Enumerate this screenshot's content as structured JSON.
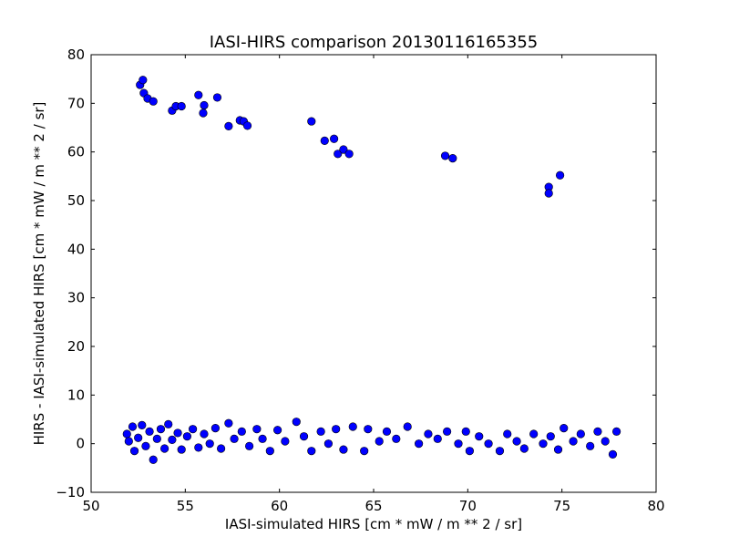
{
  "chart_data": {
    "type": "scatter",
    "title": "IASI-HIRS comparison 20130116165355",
    "xlabel": "IASI-simulated HIRS [cm * mW / m ** 2 / sr]",
    "ylabel": "HIRS - IASI-simulated HIRS [cm * mW / m ** 2 / sr]",
    "xlim": [
      50,
      80
    ],
    "ylim": [
      -10,
      80
    ],
    "xticks": [
      50,
      55,
      60,
      65,
      70,
      75,
      80
    ],
    "yticks": [
      -10,
      0,
      10,
      20,
      30,
      40,
      50,
      60,
      70,
      80
    ],
    "grid": false,
    "marker_color": "#0000ff",
    "outlier_points": [
      {
        "x": 52.6,
        "y": 73.8
      },
      {
        "x": 52.75,
        "y": 74.8
      },
      {
        "x": 52.8,
        "y": 72.1
      },
      {
        "x": 53.0,
        "y": 71.0
      },
      {
        "x": 53.3,
        "y": 70.4
      },
      {
        "x": 54.3,
        "y": 68.5
      },
      {
        "x": 54.5,
        "y": 69.4
      },
      {
        "x": 54.8,
        "y": 69.4
      },
      {
        "x": 55.7,
        "y": 71.7
      },
      {
        "x": 56.0,
        "y": 69.6
      },
      {
        "x": 55.95,
        "y": 68.0
      },
      {
        "x": 56.7,
        "y": 71.2
      },
      {
        "x": 57.3,
        "y": 65.3
      },
      {
        "x": 57.9,
        "y": 66.5
      },
      {
        "x": 58.1,
        "y": 66.3
      },
      {
        "x": 58.3,
        "y": 65.4
      },
      {
        "x": 61.7,
        "y": 66.3
      },
      {
        "x": 62.4,
        "y": 62.3
      },
      {
        "x": 62.9,
        "y": 62.7
      },
      {
        "x": 63.1,
        "y": 59.6
      },
      {
        "x": 63.4,
        "y": 60.5
      },
      {
        "x": 63.7,
        "y": 59.6
      },
      {
        "x": 68.8,
        "y": 59.2
      },
      {
        "x": 69.2,
        "y": 58.7
      },
      {
        "x": 74.3,
        "y": 52.8
      },
      {
        "x": 74.3,
        "y": 51.5
      },
      {
        "x": 74.9,
        "y": 55.2
      }
    ],
    "cluster_points": [
      {
        "x": 51.9,
        "y": 2.0
      },
      {
        "x": 52.0,
        "y": 0.5
      },
      {
        "x": 52.2,
        "y": 3.5
      },
      {
        "x": 52.3,
        "y": -1.5
      },
      {
        "x": 52.5,
        "y": 1.2
      },
      {
        "x": 52.7,
        "y": 3.8
      },
      {
        "x": 52.9,
        "y": -0.5
      },
      {
        "x": 53.1,
        "y": 2.5
      },
      {
        "x": 53.3,
        "y": -3.3
      },
      {
        "x": 53.5,
        "y": 1.0
      },
      {
        "x": 53.7,
        "y": 3.0
      },
      {
        "x": 53.9,
        "y": -1.0
      },
      {
        "x": 54.1,
        "y": 4.0
      },
      {
        "x": 54.3,
        "y": 0.8
      },
      {
        "x": 54.6,
        "y": 2.2
      },
      {
        "x": 54.8,
        "y": -1.2
      },
      {
        "x": 55.1,
        "y": 1.5
      },
      {
        "x": 55.4,
        "y": 3.0
      },
      {
        "x": 55.7,
        "y": -0.8
      },
      {
        "x": 56.0,
        "y": 2.0
      },
      {
        "x": 56.3,
        "y": 0.0
      },
      {
        "x": 56.6,
        "y": 3.2
      },
      {
        "x": 56.9,
        "y": -1.0
      },
      {
        "x": 57.3,
        "y": 4.2
      },
      {
        "x": 57.6,
        "y": 1.0
      },
      {
        "x": 58.0,
        "y": 2.5
      },
      {
        "x": 58.4,
        "y": -0.5
      },
      {
        "x": 58.8,
        "y": 3.0
      },
      {
        "x": 59.1,
        "y": 1.0
      },
      {
        "x": 59.5,
        "y": -1.5
      },
      {
        "x": 59.9,
        "y": 2.8
      },
      {
        "x": 60.3,
        "y": 0.5
      },
      {
        "x": 60.9,
        "y": 4.5
      },
      {
        "x": 61.3,
        "y": 1.5
      },
      {
        "x": 61.7,
        "y": -1.5
      },
      {
        "x": 62.2,
        "y": 2.5
      },
      {
        "x": 62.6,
        "y": 0.0
      },
      {
        "x": 63.0,
        "y": 3.0
      },
      {
        "x": 63.4,
        "y": -1.2
      },
      {
        "x": 63.9,
        "y": 3.5
      },
      {
        "x": 64.5,
        "y": -1.5
      },
      {
        "x": 64.7,
        "y": 3.0
      },
      {
        "x": 65.3,
        "y": 0.5
      },
      {
        "x": 65.7,
        "y": 2.5
      },
      {
        "x": 66.2,
        "y": 1.0
      },
      {
        "x": 66.8,
        "y": 3.5
      },
      {
        "x": 67.4,
        "y": 0.0
      },
      {
        "x": 67.9,
        "y": 2.0
      },
      {
        "x": 68.4,
        "y": 1.0
      },
      {
        "x": 68.9,
        "y": 2.5
      },
      {
        "x": 69.5,
        "y": 0.0
      },
      {
        "x": 69.9,
        "y": 2.5
      },
      {
        "x": 70.1,
        "y": -1.5
      },
      {
        "x": 70.6,
        "y": 1.5
      },
      {
        "x": 71.1,
        "y": 0.0
      },
      {
        "x": 71.7,
        "y": -1.5
      },
      {
        "x": 72.1,
        "y": 2.0
      },
      {
        "x": 72.6,
        "y": 0.5
      },
      {
        "x": 73.0,
        "y": -1.0
      },
      {
        "x": 73.5,
        "y": 2.0
      },
      {
        "x": 74.0,
        "y": 0.0
      },
      {
        "x": 74.4,
        "y": 1.5
      },
      {
        "x": 74.8,
        "y": -1.2
      },
      {
        "x": 75.1,
        "y": 3.2
      },
      {
        "x": 75.6,
        "y": 0.5
      },
      {
        "x": 76.0,
        "y": 2.0
      },
      {
        "x": 76.5,
        "y": -0.5
      },
      {
        "x": 76.9,
        "y": 2.5
      },
      {
        "x": 77.3,
        "y": 0.5
      },
      {
        "x": 77.7,
        "y": -2.2
      },
      {
        "x": 77.9,
        "y": 2.5
      }
    ]
  }
}
